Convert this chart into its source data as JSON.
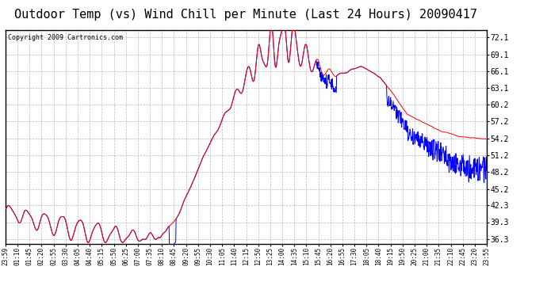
{
  "title": "Outdoor Temp (vs) Wind Chill per Minute (Last 24 Hours) 20090417",
  "copyright": "Copyright 2009 Cartronics.com",
  "yticks": [
    36.3,
    39.3,
    42.3,
    45.2,
    48.2,
    51.2,
    54.2,
    57.2,
    60.2,
    63.1,
    66.1,
    69.1,
    72.1
  ],
  "ylim": [
    35.5,
    73.5
  ],
  "xtick_labels": [
    "23:59",
    "01:10",
    "01:45",
    "02:20",
    "02:55",
    "03:30",
    "04:05",
    "04:40",
    "05:15",
    "05:50",
    "06:25",
    "07:00",
    "07:35",
    "08:10",
    "08:45",
    "09:20",
    "09:55",
    "10:30",
    "11:05",
    "11:40",
    "12:15",
    "12:50",
    "13:25",
    "14:00",
    "14:35",
    "15:10",
    "15:45",
    "16:20",
    "16:55",
    "17:30",
    "18:05",
    "18:40",
    "19:15",
    "19:50",
    "20:25",
    "21:00",
    "21:35",
    "22:10",
    "22:45",
    "23:20",
    "23:55"
  ],
  "temp_color": "#ff0000",
  "wc_color": "#0000ff",
  "bg_color": "#ffffff",
  "grid_color": "#aaaaaa",
  "title_fontsize": 11,
  "copyright_fontsize": 6
}
